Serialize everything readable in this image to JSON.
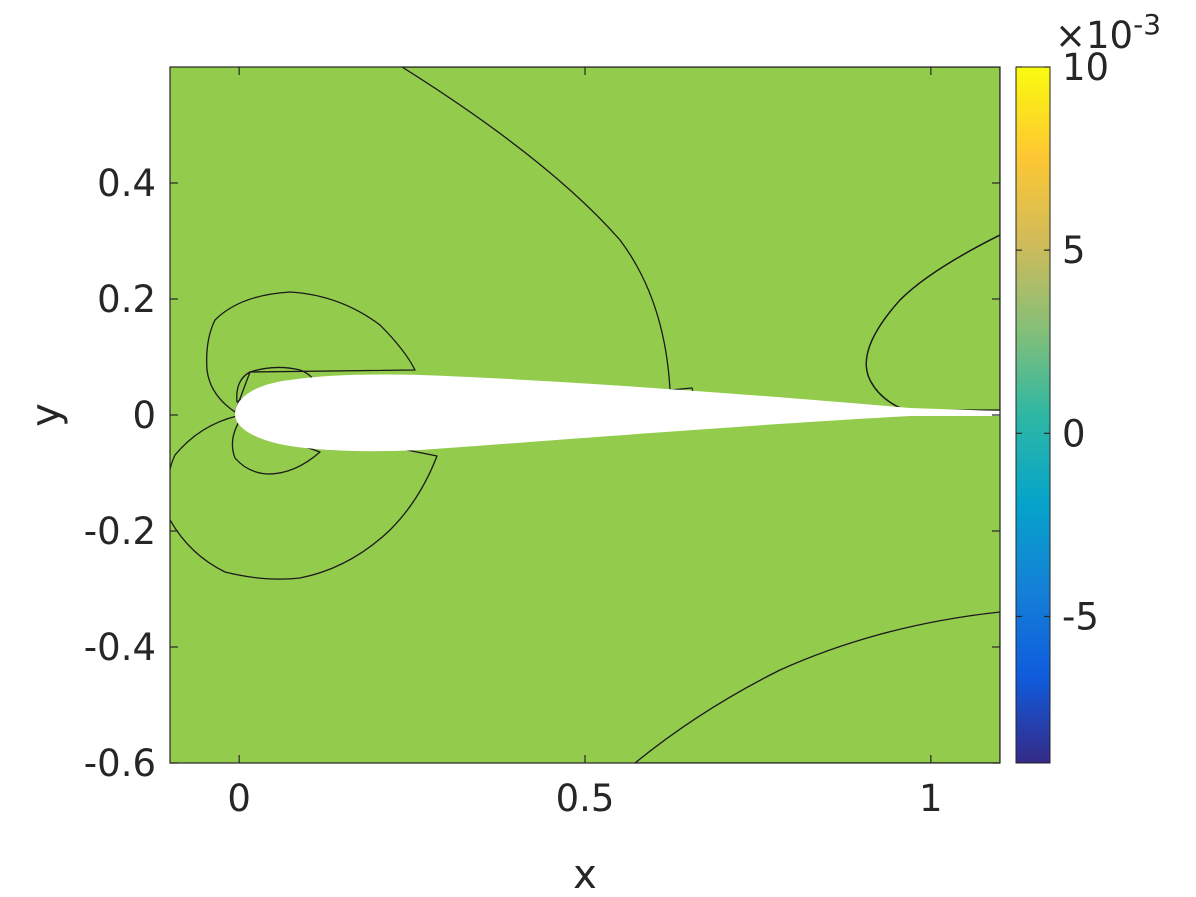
{
  "chart_data": {
    "type": "contour",
    "xlabel": "x",
    "ylabel": "y",
    "xlim": [
      -0.1,
      1.1
    ],
    "ylim": [
      -0.6,
      0.6
    ],
    "x_ticks": [
      0,
      0.5,
      1
    ],
    "x_tick_labels": [
      "0",
      "0.5",
      "1"
    ],
    "y_ticks": [
      -0.6,
      -0.4,
      -0.2,
      0,
      0.2,
      0.4
    ],
    "y_tick_labels": [
      "-0.6",
      "-0.4",
      "-0.2",
      "0",
      "0.2",
      "0.4"
    ],
    "colorbar": {
      "colormap": "parula",
      "clim": [
        -9,
        10
      ],
      "ticks": [
        -5,
        0,
        5,
        10
      ],
      "tick_labels": [
        "-5",
        "0",
        "5",
        "10"
      ],
      "exponent_label": "×10",
      "exponent_power": "-3"
    },
    "level_colors": {
      "level_1": "#00b8c9",
      "level_2": "#3cc78f",
      "level_3": "#93cb4c",
      "level_4": "#e3b929",
      "level_5": "#f8d32a"
    },
    "background_level": "level_3",
    "regions": [
      {
        "level": "level_4",
        "description": "upper-right wedge"
      },
      {
        "level": "level_3",
        "description": "right green lobe above wake"
      },
      {
        "level": "level_2",
        "description": "lower-right corner"
      },
      {
        "level": "level_2",
        "description": "upper lobe near leading edge"
      },
      {
        "level": "level_1",
        "description": "inner upper lobe near leading edge"
      },
      {
        "level": "level_4",
        "description": "lower lobe near leading edge"
      },
      {
        "level": "level_5",
        "description": "inner lower lobe near leading edge"
      }
    ],
    "airfoil": {
      "leading_edge_x": 0,
      "trailing_edge_x": 1,
      "max_half_thickness": 0.06,
      "fill": "#ffffff"
    },
    "grid": false
  }
}
